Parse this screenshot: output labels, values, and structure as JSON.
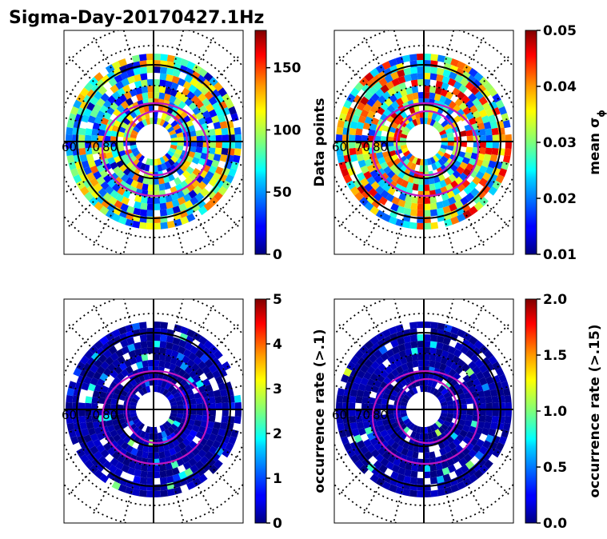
{
  "figure": {
    "title": "Sigma-Day-20170427.1Hz"
  },
  "chart_data": [
    {
      "type": "heatmap",
      "projection": "polar",
      "colormap": "jet",
      "colorbar": {
        "label": "Data points",
        "min": 0,
        "max": 180,
        "ticks": [
          {
            "value": 0,
            "label": "0"
          },
          {
            "value": 50,
            "label": "50"
          },
          {
            "value": 100,
            "label": "100"
          },
          {
            "value": 150,
            "label": "150"
          }
        ]
      },
      "ring_labels": [
        "60",
        "70",
        "80"
      ],
      "grid": true,
      "pattern": {
        "base": 0.45,
        "amp": 0.35,
        "seed": 3,
        "lowFrac": 0.05
      }
    },
    {
      "type": "heatmap",
      "projection": "polar",
      "colormap": "jet",
      "colorbar": {
        "label": "mean σ",
        "label_subscript": "ϕ",
        "min": 0.01,
        "max": 0.05,
        "ticks": [
          {
            "value": 0.01,
            "label": "0.01"
          },
          {
            "value": 0.02,
            "label": "0.02"
          },
          {
            "value": 0.03,
            "label": "0.03"
          },
          {
            "value": 0.04,
            "label": "0.04"
          },
          {
            "value": 0.05,
            "label": "0.05"
          }
        ]
      },
      "ring_labels": [
        "60",
        "70",
        "80"
      ],
      "grid": true,
      "pattern": {
        "base": 0.55,
        "amp": 0.4,
        "seed": 7,
        "lowFrac": 0.0
      }
    },
    {
      "type": "heatmap",
      "projection": "polar",
      "colormap": "jet",
      "colorbar": {
        "label": "occurrence rate (>.1)",
        "min": 0,
        "max": 5,
        "ticks": [
          {
            "value": 0,
            "label": "0"
          },
          {
            "value": 1,
            "label": "1"
          },
          {
            "value": 2,
            "label": "2"
          },
          {
            "value": 3,
            "label": "3"
          },
          {
            "value": 4,
            "label": "4"
          },
          {
            "value": 5,
            "label": "5"
          }
        ]
      },
      "ring_labels": [
        "60",
        "70",
        "80"
      ],
      "grid": true,
      "pattern": {
        "base": 0.02,
        "amp": 0.5,
        "seed": 11,
        "lowFrac": 0.8
      }
    },
    {
      "type": "heatmap",
      "projection": "polar",
      "colormap": "jet",
      "colorbar": {
        "label": "occurrence rate (>.15)",
        "min": 0,
        "max": 2,
        "ticks": [
          {
            "value": 0.0,
            "label": "0.0"
          },
          {
            "value": 0.5,
            "label": "0.5"
          },
          {
            "value": 1.0,
            "label": "1.0"
          },
          {
            "value": 1.5,
            "label": "1.5"
          },
          {
            "value": 2.0,
            "label": "2.0"
          }
        ]
      },
      "ring_labels": [
        "60",
        "70",
        "80"
      ],
      "grid": true,
      "pattern": {
        "base": 0.02,
        "amp": 0.6,
        "seed": 19,
        "lowFrac": 0.87
      }
    }
  ]
}
